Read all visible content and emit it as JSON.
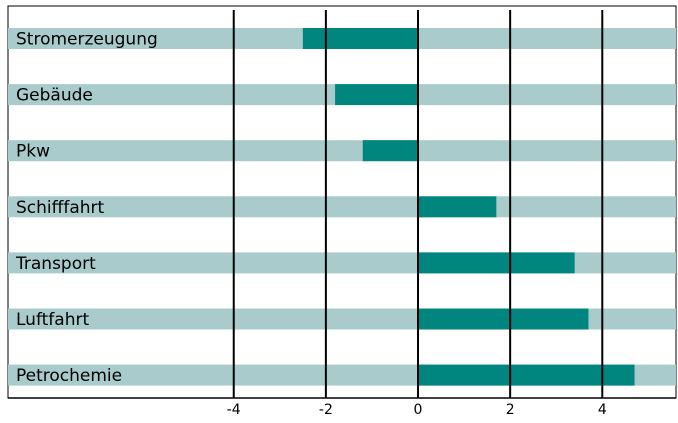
{
  "chart_data": {
    "type": "bar",
    "orientation": "horizontal",
    "categories": [
      "Stromerzeugung",
      "Gebäude",
      "Pkw",
      "Schifffahrt",
      "Transport",
      "Luftfahrt",
      "Petrochemie"
    ],
    "values": [
      -2.5,
      -1.8,
      -1.2,
      1.7,
      3.4,
      3.7,
      4.7
    ],
    "color": "#00857f",
    "background_color": "#a9cbcb",
    "xlim": [
      -8.9,
      5.6
    ],
    "xticks": [
      -4,
      -2,
      0,
      2,
      4
    ],
    "grid": true
  }
}
